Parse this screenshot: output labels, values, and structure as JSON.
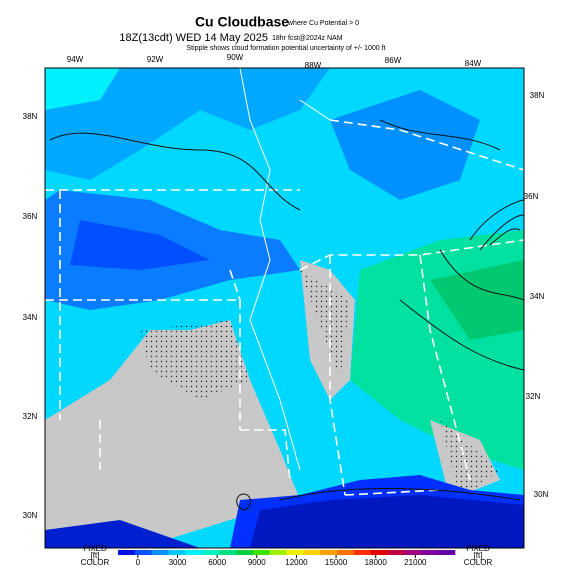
{
  "header": {
    "title": "Cu Cloudbase",
    "title_note": "where Cu Potential > 0",
    "valid_time": "18Z(13cdt) WED 14 May 2025",
    "forecast": "18hr fcst@2024z NAM",
    "subtitle": "Stipple shows cloud formation potential uncertainty of +/- 1000 ft"
  },
  "map": {
    "top_labels": [
      "94W",
      "92W",
      "90W",
      "88W",
      "86W",
      "84W"
    ],
    "left_labels": [
      "38N",
      "36N",
      "34N",
      "32N",
      "30N"
    ],
    "right_labels": [
      "38N",
      "36N",
      "34N",
      "32N",
      "30N"
    ]
  },
  "colorbar": {
    "left_label": [
      "FIXED",
      "[ft]",
      "COLOR"
    ],
    "right_label": [
      "FIXED",
      "[ft]",
      "COLOR"
    ],
    "ticks": [
      0,
      3000,
      6000,
      9000,
      12000,
      15000,
      18000,
      21000
    ],
    "range": [
      -1500,
      24000
    ],
    "colors": [
      "#0010e0",
      "#0050ff",
      "#0090ff",
      "#00c8ff",
      "#00f0ff",
      "#00f0c0",
      "#00e080",
      "#00d040",
      "#40e000",
      "#a0f000",
      "#f0f000",
      "#ffd000",
      "#ffa000",
      "#ff7000",
      "#ff3000",
      "#e00000",
      "#c00040",
      "#a00080",
      "#8000a0",
      "#6000a0"
    ]
  }
}
